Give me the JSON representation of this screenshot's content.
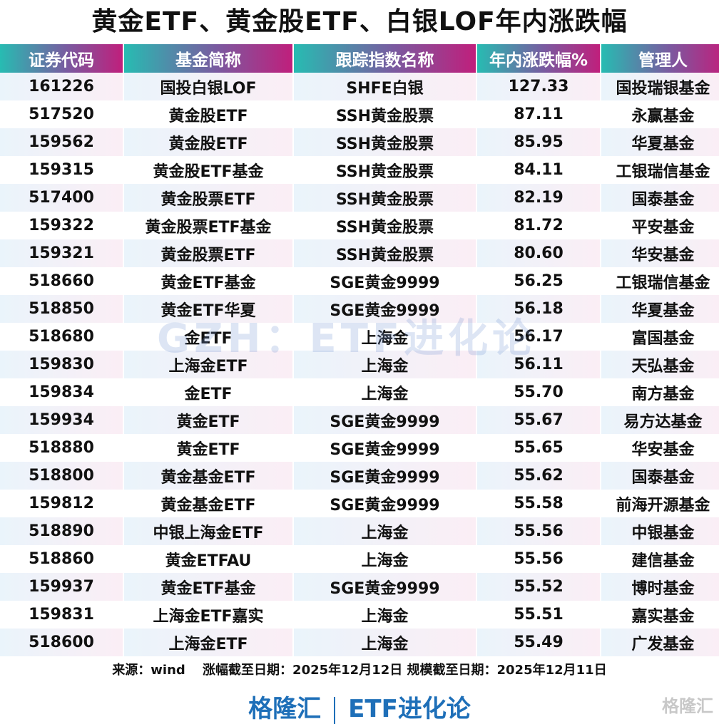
{
  "title": "黄金ETF、黄金股ETF、白银LOF年内涨跌幅",
  "headers": [
    "证券代码",
    "基金简称",
    "跟踪指数名称",
    "年内涨跌幅%",
    "管理人"
  ],
  "rows": [
    [
      "161226",
      "国投白银LOF",
      "SHFE白银",
      "127.33",
      "国投瑞银基金"
    ],
    [
      "517520",
      "黄金股ETF",
      "SSH黄金股票",
      "87.11",
      "永赢基金"
    ],
    [
      "159562",
      "黄金股ETF",
      "SSH黄金股票",
      "85.95",
      "华夏基金"
    ],
    [
      "159315",
      "黄金股ETF基金",
      "SSH黄金股票",
      "84.11",
      "工银瑞信基金"
    ],
    [
      "517400",
      "黄金股票ETF",
      "SSH黄金股票",
      "82.19",
      "国泰基金"
    ],
    [
      "159322",
      "黄金股票ETF基金",
      "SSH黄金股票",
      "81.72",
      "平安基金"
    ],
    [
      "159321",
      "黄金股票ETF",
      "SSH黄金股票",
      "80.60",
      "华安基金"
    ],
    [
      "518660",
      "黄金ETF基金",
      "SGE黄金9999",
      "56.25",
      "工银瑞信基金"
    ],
    [
      "518850",
      "黄金ETF华夏",
      "SGE黄金9999",
      "56.18",
      "华夏基金"
    ],
    [
      "518680",
      "金ETF",
      "上海金",
      "56.17",
      "富国基金"
    ],
    [
      "159830",
      "上海金ETF",
      "上海金",
      "56.11",
      "天弘基金"
    ],
    [
      "159834",
      "金ETF",
      "上海金",
      "55.70",
      "南方基金"
    ],
    [
      "159934",
      "黄金ETF",
      "SGE黄金9999",
      "55.67",
      "易方达基金"
    ],
    [
      "518880",
      "黄金ETF",
      "SGE黄金9999",
      "55.65",
      "华安基金"
    ],
    [
      "518800",
      "黄金基金ETF",
      "SGE黄金9999",
      "55.62",
      "国泰基金"
    ],
    [
      "159812",
      "黄金基金ETF",
      "SGE黄金9999",
      "55.58",
      "前海开源基金"
    ],
    [
      "518890",
      "中银上海金ETF",
      "上海金",
      "55.56",
      "中银基金"
    ],
    [
      "518860",
      "黄金ETFAU",
      "上海金",
      "55.56",
      "建信基金"
    ],
    [
      "159937",
      "黄金ETF基金",
      "SGE黄金9999",
      "55.52",
      "博时基金"
    ],
    [
      "159831",
      "上海金ETF嘉实",
      "上海金",
      "55.51",
      "嘉实基金"
    ],
    [
      "518600",
      "上海金ETF",
      "上海金",
      "55.49",
      "广发基金"
    ]
  ],
  "note": "来源：wind　 涨幅截至日期：2025年12月12日  规模截至日期：2025年12月11日",
  "brand_left": "格隆汇",
  "brand_right": "ETF进化论",
  "watermark": "GZH：ETF进化论",
  "logo": "格隆汇",
  "colors": {
    "header_start": "#27bcb2",
    "header_end": "#c01f7c",
    "brand": "#1e6fb8"
  }
}
